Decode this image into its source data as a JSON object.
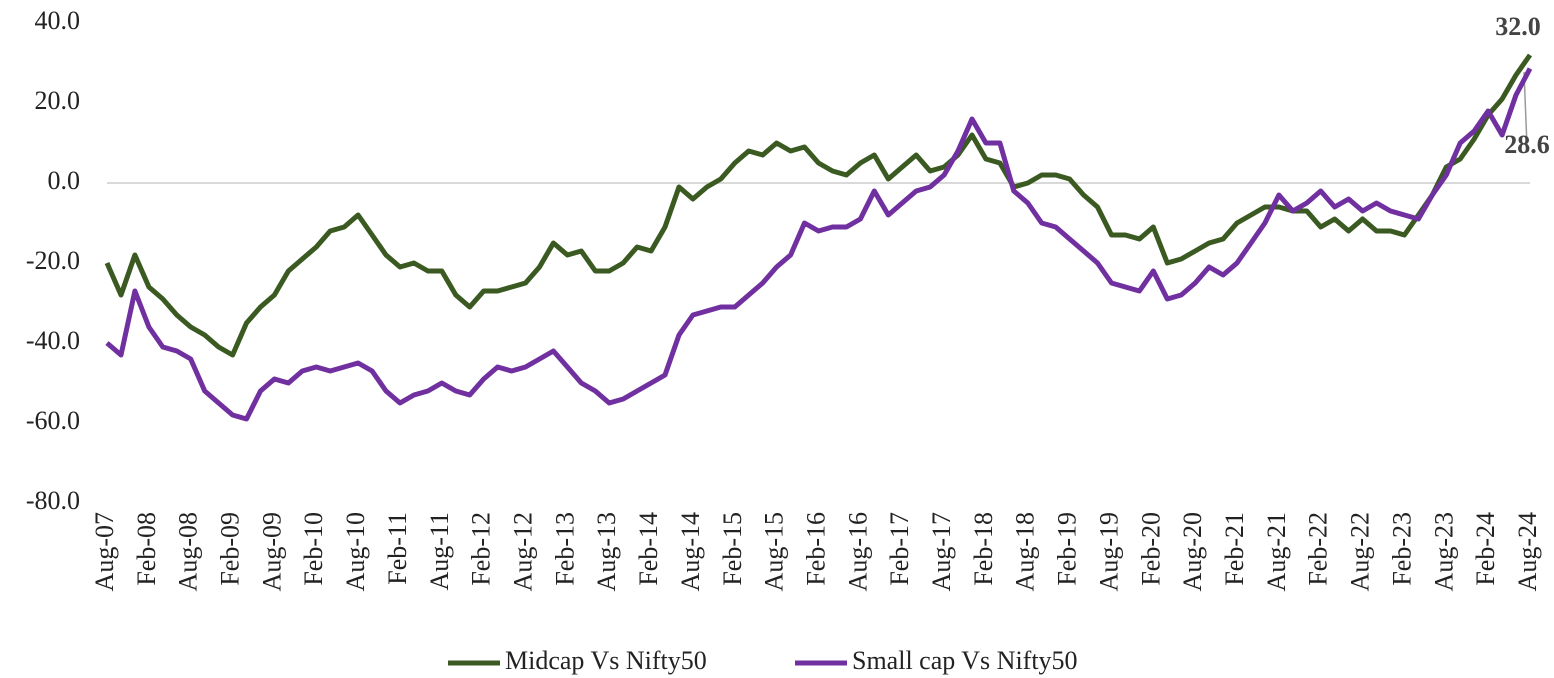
{
  "chart_data": {
    "type": "line",
    "categories": [
      "Aug-07",
      null,
      null,
      "Feb-08",
      null,
      null,
      "Aug-08",
      null,
      null,
      "Feb-09",
      null,
      null,
      "Aug-09",
      null,
      null,
      "Feb-10",
      null,
      null,
      "Aug-10",
      null,
      null,
      "Feb-11",
      null,
      null,
      "Aug-11",
      null,
      null,
      "Feb-12",
      null,
      null,
      "Aug-12",
      null,
      null,
      "Feb-13",
      null,
      null,
      "Aug-13",
      null,
      null,
      "Feb-14",
      null,
      null,
      "Aug-14",
      null,
      null,
      "Feb-15",
      null,
      null,
      "Aug-15",
      null,
      null,
      "Feb-16",
      null,
      null,
      "Aug-16",
      null,
      null,
      "Feb-17",
      null,
      null,
      "Aug-17",
      null,
      null,
      "Feb-18",
      null,
      null,
      "Aug-18",
      null,
      null,
      "Feb-19",
      null,
      null,
      "Aug-19",
      null,
      null,
      "Feb-20",
      null,
      null,
      "Aug-20",
      null,
      null,
      "Feb-21",
      null,
      null,
      "Aug-21",
      null,
      null,
      "Feb-22",
      null,
      null,
      "Aug-22",
      null,
      null,
      "Feb-23",
      null,
      null,
      "Aug-23",
      null,
      null,
      "Feb-24",
      null,
      null,
      "Aug-24"
    ],
    "series": [
      {
        "name": "Midcap Vs Nifty50",
        "color": "#3b5a22",
        "values": [
          -20,
          -28,
          -18,
          -26,
          -29,
          -33,
          -36,
          -38,
          -41,
          -43,
          -35,
          -31,
          -28,
          -22,
          -19,
          -16,
          -12,
          -11,
          -8,
          -13,
          -18,
          -21,
          -20,
          -22,
          -22,
          -28,
          -31,
          -27,
          -27,
          -26,
          -25,
          -21,
          -15,
          -18,
          -17,
          -22,
          -22,
          -20,
          -16,
          -17,
          -11,
          -1,
          -4,
          -1,
          1,
          5,
          8,
          7,
          10,
          8,
          9,
          5,
          3,
          2,
          5,
          7,
          1,
          4,
          7,
          3,
          4,
          7,
          12,
          6,
          5,
          -1,
          0,
          2,
          2,
          1,
          -3,
          -6,
          -13,
          -13,
          -14,
          -11,
          -20,
          -19,
          -17,
          -15,
          -14,
          -10,
          -8,
          -6,
          -6,
          -7,
          -7,
          -11,
          -9,
          -12,
          -9,
          -12,
          -12,
          -13,
          -8,
          -3,
          4,
          6,
          11,
          17,
          21,
          27,
          32.0
        ],
        "value_labels": [
          null,
          null,
          null,
          null,
          null,
          null,
          null,
          null,
          null,
          null,
          null,
          null,
          null,
          null,
          null,
          null,
          null,
          null,
          null,
          null,
          null,
          null,
          null,
          null,
          null,
          null,
          null,
          null,
          null,
          null,
          null,
          null,
          null,
          null,
          null,
          null,
          null,
          null,
          null,
          null,
          null,
          null,
          null,
          null,
          null,
          null,
          null,
          null,
          null,
          null,
          null,
          null,
          null,
          null,
          null,
          null,
          null,
          null,
          null,
          null,
          null,
          null,
          null,
          null,
          null,
          null,
          null,
          null,
          null,
          null,
          null,
          null,
          null,
          null,
          null,
          null,
          null,
          null,
          null,
          null,
          null,
          null,
          null,
          null,
          null,
          null,
          null,
          null,
          null,
          null,
          null,
          null,
          null,
          null,
          null,
          null,
          null,
          null,
          null,
          null,
          null,
          null,
          "32.0"
        ]
      },
      {
        "name": "Small cap Vs Nifty50",
        "color": "#7030a0",
        "values": [
          -40,
          -43,
          -27,
          -36,
          -41,
          -42,
          -44,
          -52,
          -55,
          -58,
          -59,
          -52,
          -49,
          -50,
          -47,
          -46,
          -47,
          -46,
          -45,
          -47,
          -52,
          -55,
          -53,
          -52,
          -50,
          -52,
          -53,
          -49,
          -46,
          -47,
          -46,
          -44,
          -42,
          -46,
          -50,
          -52,
          -55,
          -54,
          -52,
          -50,
          -48,
          -38,
          -33,
          -32,
          -31,
          -31,
          -28,
          -25,
          -21,
          -18,
          -10,
          -12,
          -11,
          -11,
          -9,
          -2,
          -8,
          -5,
          -2,
          -1,
          2,
          8,
          16,
          10,
          10,
          -2,
          -5,
          -10,
          -11,
          -14,
          -17,
          -20,
          -25,
          -26,
          -27,
          -22,
          -29,
          -28,
          -25,
          -21,
          -23,
          -20,
          -15,
          -10,
          -3,
          -7,
          -5,
          -2,
          -6,
          -4,
          -7,
          -5,
          -7,
          -8,
          -9,
          -3,
          2,
          10,
          13,
          18,
          12,
          22,
          28.6
        ],
        "value_labels": [
          null,
          null,
          null,
          null,
          null,
          null,
          null,
          null,
          null,
          null,
          null,
          null,
          null,
          null,
          null,
          null,
          null,
          null,
          null,
          null,
          null,
          null,
          null,
          null,
          null,
          null,
          null,
          null,
          null,
          null,
          null,
          null,
          null,
          null,
          null,
          null,
          null,
          null,
          null,
          null,
          null,
          null,
          null,
          null,
          null,
          null,
          null,
          null,
          null,
          null,
          null,
          null,
          null,
          null,
          null,
          null,
          null,
          null,
          null,
          null,
          null,
          null,
          null,
          null,
          null,
          null,
          null,
          null,
          null,
          null,
          null,
          null,
          null,
          null,
          null,
          null,
          null,
          null,
          null,
          null,
          null,
          null,
          null,
          null,
          null,
          null,
          null,
          null,
          null,
          null,
          null,
          null,
          null,
          null,
          null,
          null,
          null,
          null,
          null,
          null,
          null,
          null,
          "28.6"
        ]
      }
    ],
    "ylim": [
      -80,
      40
    ],
    "yticks": [
      {
        "value": -80,
        "label": "-80.0"
      },
      {
        "value": -60,
        "label": "-60.0"
      },
      {
        "value": -40,
        "label": "-40.0"
      },
      {
        "value": -20,
        "label": "-20.0"
      },
      {
        "value": 0,
        "label": "0.0"
      },
      {
        "value": 20,
        "label": "20.0"
      },
      {
        "value": 40,
        "label": "40.0"
      }
    ],
    "grid": false,
    "legend": "bottom"
  }
}
